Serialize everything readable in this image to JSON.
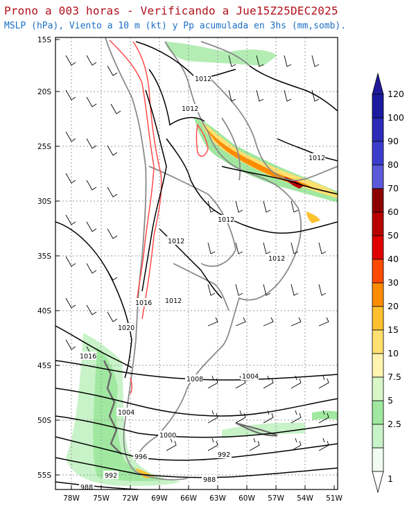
{
  "header": {
    "title": "Prono a 003 horas - Verificando a Jue15Z25DEC2025",
    "subtitle": "MSLP (hPa), Viento a 10 m (kt) y Pp acumulada en 3hs (mm,somb)."
  },
  "axes": {
    "lat_labels": [
      "15S",
      "20S",
      "25S",
      "30S",
      "35S",
      "40S",
      "45S",
      "50S",
      "55S"
    ],
    "lon_labels": [
      "78W",
      "75W",
      "72W",
      "69W",
      "66W",
      "63W",
      "60W",
      "57W",
      "54W",
      "51W"
    ]
  },
  "isobars": {
    "labels": [
      "1012",
      "1012",
      "1012",
      "1012",
      "1012",
      "1012",
      "1012",
      "1016",
      "1020",
      "1016",
      "1008",
      "1004",
      "1004",
      "1000",
      "996",
      "992",
      "992",
      "988",
      "988"
    ]
  },
  "colorbar": {
    "levels": [
      "120",
      "100",
      "90",
      "80",
      "70",
      "60",
      "50",
      "40",
      "30",
      "20",
      "15",
      "10",
      "7.5",
      "5",
      "2.5",
      "1"
    ],
    "colors": [
      "#1c1ca0",
      "#2c2cb8",
      "#3c3ccc",
      "#5a5ad8",
      "#8c0000",
      "#b80000",
      "#e00000",
      "#ff4a00",
      "#ff8c00",
      "#ffc030",
      "#ffe070",
      "#fff4b0",
      "#d8f6c8",
      "#a0e8a0",
      "#c8f2c8",
      "#f0fcf0"
    ],
    "arrow_color": "#201a9a"
  },
  "colors": {
    "title": "#b0101a",
    "subtitle": "#1a6fc4",
    "isobar": "#000000",
    "border": "#8a8a8a",
    "isoline_red": "#ff4a4a"
  }
}
